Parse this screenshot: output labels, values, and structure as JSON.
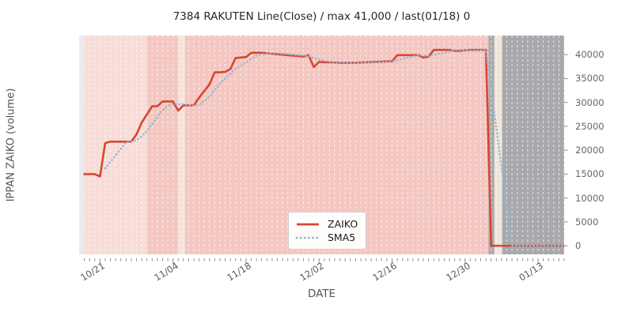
{
  "title": "7384 RAKUTEN Line(Close) / max 41,000 / last(01/18) 0",
  "xlabel": "DATE",
  "ylabel": "IPPAN ZAIKO (volume)",
  "legend": {
    "items": [
      {
        "label": "ZAIKO",
        "style": "solid"
      },
      {
        "label": "SMA5",
        "style": "dotted"
      }
    ]
  },
  "colors": {
    "zaiko": "#d74632",
    "sma5": "#93b7d7",
    "axes_bg": "#e9e9ef",
    "pink_light": "#f8dcd7",
    "pink": "#f4c7c1",
    "band_pink": "#f7e3dd",
    "gray": "#a9a9ad",
    "band_cream": "#efe5d8",
    "grid": "rgba(255,255,255,0.7)",
    "tick": "#888888",
    "tick_label": "#666666",
    "axis_label": "#555555",
    "title": "#262626"
  },
  "chart_data": {
    "type": "line",
    "title": "7384 RAKUTEN Line(Close) / max 41,000 / last(01/18) 0",
    "xlabel": "DATE",
    "ylabel": "IPPAN ZAIKO (volume)",
    "x_tick_labels": [
      "10/21",
      "11/04",
      "11/18",
      "12/02",
      "12/16",
      "12/30",
      "01/13"
    ],
    "x_tick_days": [
      3,
      17,
      31,
      45,
      59,
      73,
      87
    ],
    "y_ticks": [
      0,
      5000,
      10000,
      15000,
      20000,
      25000,
      30000,
      35000,
      40000
    ],
    "xlim_days": [
      -1,
      92
    ],
    "ylim": [
      -1800,
      44000
    ],
    "grid": {
      "vertical_daily_dashed": true,
      "horizontal": false
    },
    "legend_position": "lower center-left",
    "max_value": 41000,
    "last_date": "01/18",
    "last_value": 0,
    "dates": [
      "10/18",
      "10/19",
      "10/20",
      "10/21",
      "10/22",
      "10/23",
      "10/24",
      "10/25",
      "10/26",
      "10/27",
      "10/28",
      "10/29",
      "10/30",
      "10/31",
      "11/01",
      "11/02",
      "11/03",
      "11/04",
      "11/05",
      "11/06",
      "11/07",
      "11/08",
      "11/09",
      "11/10",
      "11/11",
      "11/12",
      "11/13",
      "11/14",
      "11/15",
      "11/16",
      "11/17",
      "11/18",
      "11/19",
      "11/20",
      "11/21",
      "11/22",
      "11/23",
      "11/24",
      "11/25",
      "11/26",
      "11/27",
      "11/28",
      "11/29",
      "11/30",
      "12/01",
      "12/02",
      "12/03",
      "12/04",
      "12/05",
      "12/06",
      "12/07",
      "12/08",
      "12/09",
      "12/10",
      "12/11",
      "12/12",
      "12/13",
      "12/14",
      "12/15",
      "12/16",
      "12/17",
      "12/18",
      "12/19",
      "12/20",
      "12/21",
      "12/22",
      "12/23",
      "12/24",
      "12/25",
      "12/26",
      "12/27",
      "12/28",
      "12/29",
      "12/30",
      "12/31",
      "01/01",
      "01/02",
      "01/03",
      "01/04",
      "01/05",
      "01/06",
      "01/07",
      "01/08",
      "01/09",
      "01/10",
      "01/11",
      "01/12",
      "01/13",
      "01/14",
      "01/15",
      "01/16",
      "01/17",
      "01/18"
    ],
    "series": [
      {
        "name": "ZAIKO",
        "style": "solid",
        "values": [
          15000,
          15000,
          15000,
          14500,
          21500,
          21800,
          21800,
          21800,
          21800,
          21800,
          23300,
          25800,
          27500,
          29200,
          29200,
          30200,
          30200,
          30200,
          28300,
          29400,
          29400,
          29400,
          31000,
          32400,
          33800,
          36300,
          36300,
          36400,
          37000,
          39300,
          39400,
          39500,
          40400,
          40400,
          40400,
          40300,
          40200,
          40100,
          40000,
          39900,
          39800,
          39700,
          39600,
          39900,
          37400,
          38500,
          38400,
          38400,
          38350,
          38300,
          38300,
          38300,
          38300,
          38350,
          38400,
          38450,
          38500,
          38550,
          38600,
          38600,
          39900,
          39900,
          39900,
          39900,
          39900,
          39400,
          39600,
          41000,
          41000,
          41000,
          41000,
          40800,
          40800,
          40900,
          41000,
          41000,
          41000,
          41000,
          0,
          0,
          0,
          0,
          0,
          0,
          0,
          0,
          0,
          0,
          0,
          0,
          0,
          0,
          0
        ]
      },
      {
        "name": "SMA5",
        "style": "dotted",
        "derived_from": "ZAIKO",
        "window": 5
      }
    ],
    "background_spans": [
      {
        "name": "pink-light",
        "from_day": -0.2,
        "to_day": 12.0,
        "color_key": "pink_light"
      },
      {
        "name": "pink",
        "from_day": 12.0,
        "to_day": 77.5,
        "color_key": "pink"
      },
      {
        "name": "band-1",
        "from_day": 18.0,
        "to_day": 19.3,
        "color_key": "band_pink"
      },
      {
        "name": "gray",
        "from_day": 77.5,
        "to_day": 92.0,
        "color_key": "gray"
      },
      {
        "name": "band-2",
        "from_day": 78.6,
        "to_day": 80.1,
        "color_key": "band_cream"
      }
    ]
  }
}
